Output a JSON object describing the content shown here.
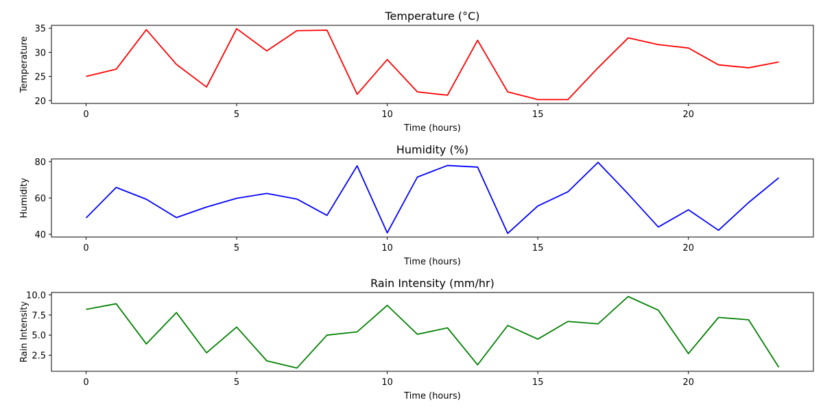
{
  "chart_data": [
    {
      "type": "line",
      "title": "Temperature (°C)",
      "xlabel": "Time (hours)",
      "ylabel": "Temperature",
      "color": "#ff0000",
      "xlim": [
        -1.15,
        24.15
      ],
      "ylim": [
        19.4,
        35.6
      ],
      "xticks": [
        0,
        5,
        10,
        15,
        20
      ],
      "yticks": [
        20,
        25,
        30,
        35
      ],
      "grid": false,
      "x": [
        0,
        1,
        2,
        3,
        4,
        5,
        6,
        7,
        8,
        9,
        10,
        11,
        12,
        13,
        14,
        15,
        16,
        17,
        18,
        19,
        20,
        21,
        22,
        23
      ],
      "values": [
        25.0,
        26.5,
        34.7,
        27.5,
        22.8,
        34.9,
        30.3,
        34.5,
        34.6,
        21.3,
        28.5,
        21.8,
        21.1,
        32.5,
        21.8,
        20.2,
        20.2,
        26.8,
        33.0,
        31.6,
        30.9,
        27.4,
        26.8,
        28.0
      ]
    },
    {
      "type": "line",
      "title": "Humidity (%)",
      "xlabel": "Time (hours)",
      "ylabel": "Humidity",
      "color": "#0000ff",
      "xlim": [
        -1.15,
        24.15
      ],
      "ylim": [
        38.5,
        81.5
      ],
      "xticks": [
        0,
        5,
        10,
        15,
        20
      ],
      "yticks": [
        40,
        60,
        80
      ],
      "grid": false,
      "x": [
        0,
        1,
        2,
        3,
        4,
        5,
        6,
        7,
        8,
        9,
        10,
        11,
        12,
        13,
        14,
        15,
        16,
        17,
        18,
        19,
        20,
        21,
        22,
        23
      ],
      "values": [
        49.0,
        65.8,
        59.3,
        49.2,
        55.0,
        59.8,
        62.5,
        59.4,
        50.4,
        77.7,
        40.8,
        71.5,
        77.9,
        77.0,
        40.5,
        55.6,
        63.4,
        79.6,
        62.2,
        44.0,
        53.5,
        42.2,
        57.5,
        71.1
      ]
    },
    {
      "type": "line",
      "title": "Rain Intensity (mm/hr)",
      "xlabel": "Time (hours)",
      "ylabel": "Rain Intensity",
      "color": "#008000",
      "xlim": [
        -1.15,
        24.15
      ],
      "ylim": [
        0.5,
        10.3
      ],
      "xticks": [
        0,
        5,
        10,
        15,
        20
      ],
      "yticks": [
        2.5,
        5.0,
        7.5,
        10.0
      ],
      "ytick_labels": [
        "2.5",
        "5.0",
        "7.5",
        "10.0"
      ],
      "grid": false,
      "x": [
        0,
        1,
        2,
        3,
        4,
        5,
        6,
        7,
        8,
        9,
        10,
        11,
        12,
        13,
        14,
        15,
        16,
        17,
        18,
        19,
        20,
        21,
        22,
        23
      ],
      "values": [
        8.2,
        8.9,
        3.9,
        7.8,
        2.8,
        6.0,
        1.8,
        0.9,
        5.0,
        5.4,
        8.7,
        5.1,
        5.9,
        1.3,
        6.2,
        4.5,
        6.7,
        6.4,
        9.8,
        8.1,
        2.7,
        7.2,
        6.9,
        1.0
      ]
    }
  ]
}
